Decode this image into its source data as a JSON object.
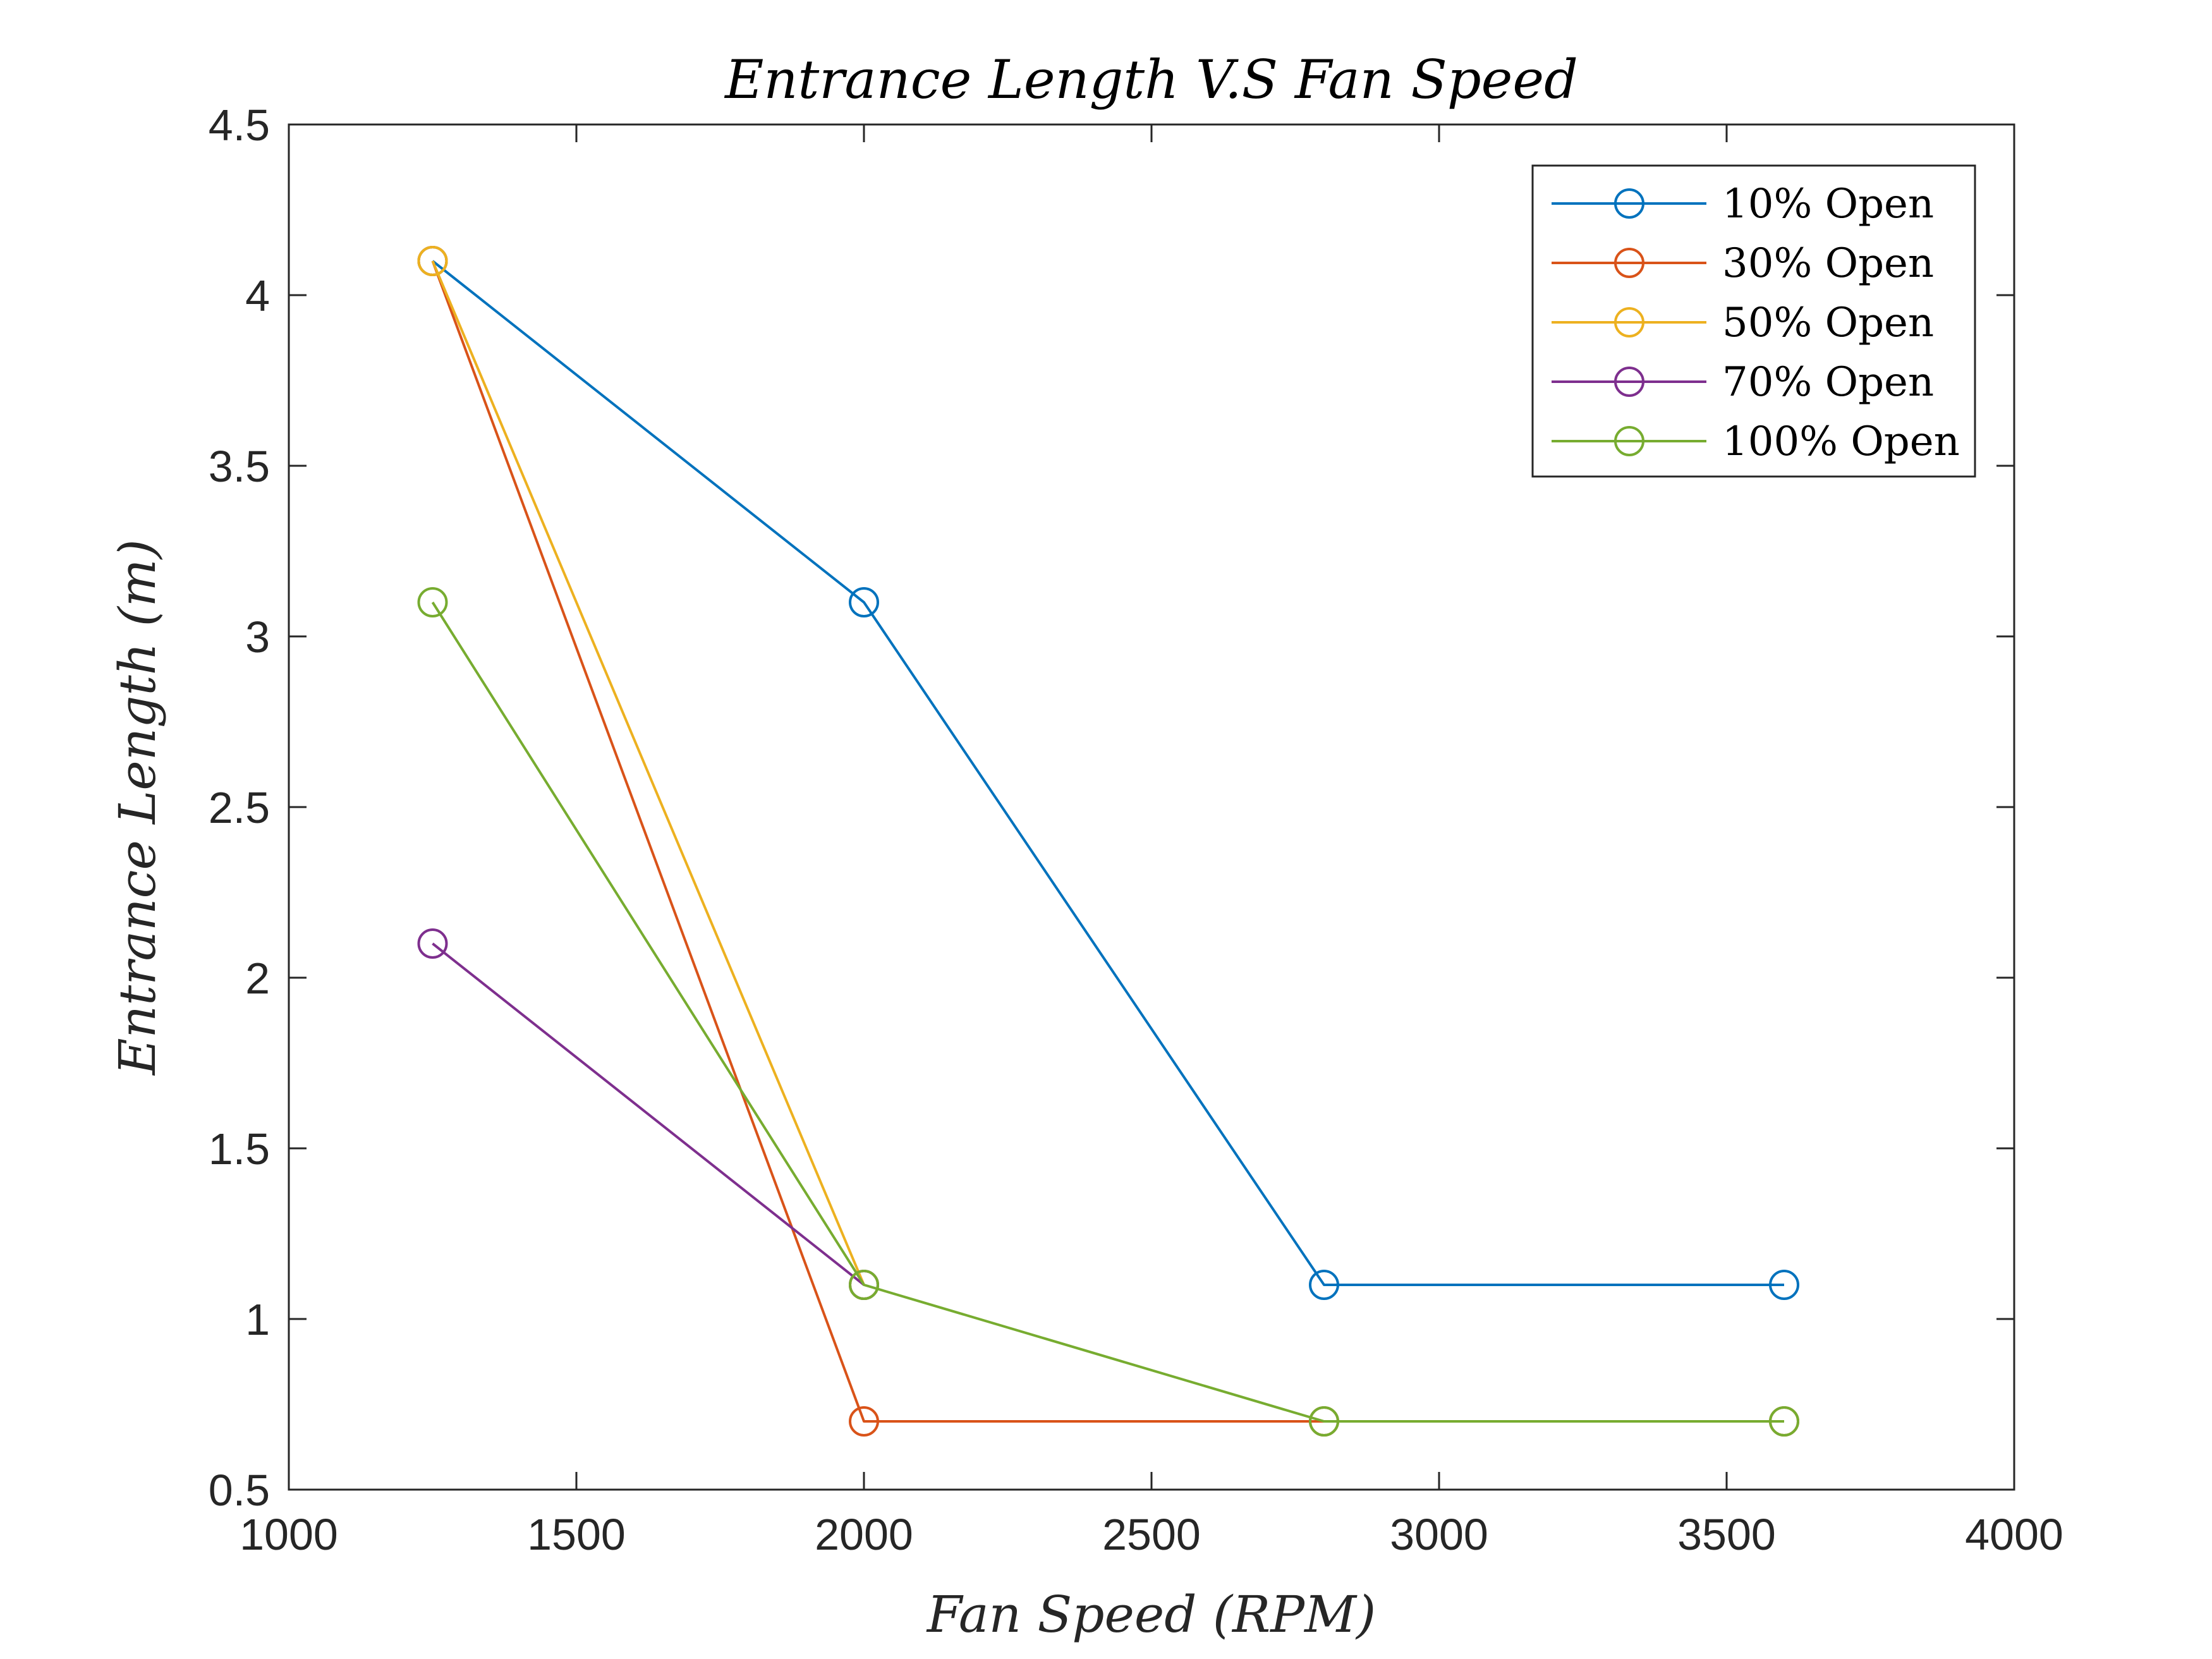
{
  "chart_data": {
    "type": "line",
    "title": "Entrance Length V.S Fan Speed",
    "xlabel": "Fan Speed (RPM)",
    "ylabel": "Entrance Length (m)",
    "xlim": [
      1000,
      4000
    ],
    "ylim": [
      0.5,
      4.5
    ],
    "xticks": [
      1000,
      1500,
      2000,
      2500,
      3000,
      3500,
      4000
    ],
    "yticks": [
      0.5,
      1,
      1.5,
      2,
      2.5,
      3,
      3.5,
      4,
      4.5
    ],
    "grid": false,
    "legend_position": "top-right",
    "marker": "circle",
    "series": [
      {
        "name": "10% Open",
        "color": "#0072BD",
        "x": [
          1250,
          2000,
          2800,
          3600
        ],
        "y": [
          4.1,
          3.1,
          1.1,
          1.1
        ]
      },
      {
        "name": "30% Open",
        "color": "#D95319",
        "x": [
          1250,
          2000,
          2800,
          3600
        ],
        "y": [
          4.1,
          0.7,
          0.7,
          0.7
        ]
      },
      {
        "name": "50% Open",
        "color": "#EDB120",
        "x": [
          1250,
          2000
        ],
        "y": [
          4.1,
          1.1
        ]
      },
      {
        "name": "70% Open",
        "color": "#7E2F8E",
        "x": [
          1250,
          2000
        ],
        "y": [
          2.1,
          1.1
        ]
      },
      {
        "name": "100% Open",
        "color": "#77AC30",
        "x": [
          1250,
          2000,
          2800,
          3600
        ],
        "y": [
          3.1,
          1.1,
          0.7,
          0.7
        ]
      }
    ]
  }
}
